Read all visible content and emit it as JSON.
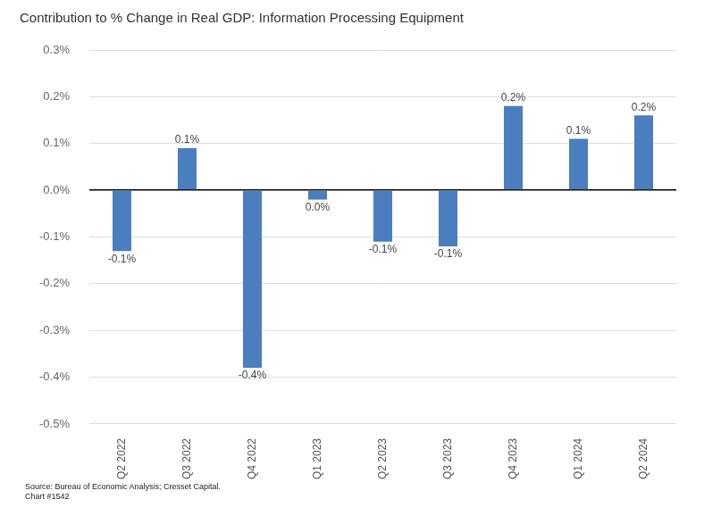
{
  "chart_data": {
    "type": "bar",
    "title": "Contribution to % Change in Real GDP: Information Processing Equipment",
    "annotations": [
      "Source: Bureau of Economic Analysis; Cresset Capital.",
      "Chart #1542"
    ],
    "categories": [
      "Q2 2022",
      "Q3 2022",
      "Q4 2022",
      "Q1 2023",
      "Q2 2023",
      "Q3 2023",
      "Q4 2023",
      "Q1 2024",
      "Q2 2024"
    ],
    "values": [
      -0.13,
      0.09,
      -0.38,
      -0.02,
      -0.11,
      -0.12,
      0.18,
      0.11,
      0.16
    ],
    "value_labels": [
      "-0.1%",
      "0.1%",
      "-0.4%",
      "0.0%",
      "-0.1%",
      "-0.1%",
      "0.2%",
      "0.1%",
      "0.2%"
    ],
    "data_labels": true,
    "color": "#4a7ebf",
    "ylim": [
      -0.5,
      0.3
    ],
    "yticks": [
      {
        "value": -0.5,
        "label": "-0.5%"
      },
      {
        "value": -0.4,
        "label": "-0.4%"
      },
      {
        "value": -0.3,
        "label": "-0.3%"
      },
      {
        "value": -0.2,
        "label": "-0.2%"
      },
      {
        "value": -0.1,
        "label": "-0.1%"
      },
      {
        "value": 0,
        "label": "0.0%"
      },
      {
        "value": 0.1,
        "label": "0.1%"
      },
      {
        "value": 0.2,
        "label": "0.2%"
      },
      {
        "value": 0.3,
        "label": "0.3%"
      }
    ],
    "grid": true
  }
}
